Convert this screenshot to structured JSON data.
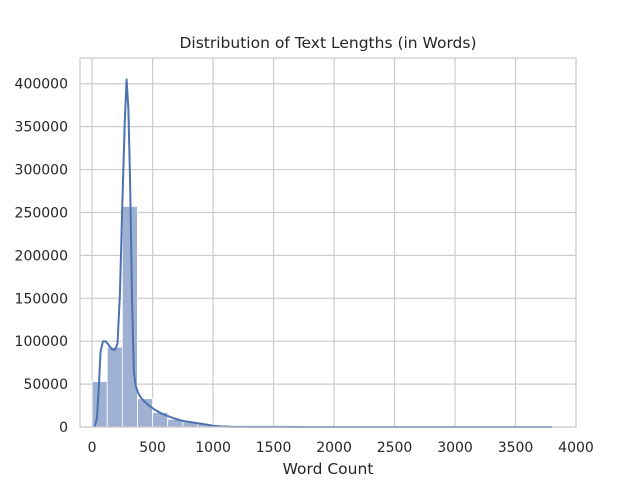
{
  "chart_data": {
    "type": "bar",
    "title": "Distribution of Text Lengths (in Words)",
    "xlabel": "Word Count",
    "ylabel": "",
    "xlim": [
      -100,
      4000
    ],
    "ylim": [
      0,
      430000
    ],
    "x_ticks": [
      0,
      500,
      1000,
      1500,
      2000,
      2500,
      3000,
      3500,
      4000
    ],
    "y_ticks": [
      0,
      50000,
      100000,
      150000,
      200000,
      250000,
      300000,
      350000,
      400000
    ],
    "grid": true,
    "bin_width": 125,
    "bins": [
      {
        "x0": 0,
        "value": 53000
      },
      {
        "x0": 125,
        "value": 93000
      },
      {
        "x0": 250,
        "value": 257000
      },
      {
        "x0": 375,
        "value": 33000
      },
      {
        "x0": 500,
        "value": 17000
      },
      {
        "x0": 625,
        "value": 9000
      },
      {
        "x0": 750,
        "value": 5500
      },
      {
        "x0": 875,
        "value": 3500
      },
      {
        "x0": 1000,
        "value": 1200
      },
      {
        "x0": 1125,
        "value": 600
      },
      {
        "x0": 1250,
        "value": 300
      },
      {
        "x0": 1375,
        "value": 150
      },
      {
        "x0": 1500,
        "value": 80
      }
    ],
    "kde": {
      "x": [
        20,
        40,
        55,
        70,
        90,
        110,
        130,
        150,
        170,
        190,
        210,
        230,
        250,
        270,
        285,
        300,
        315,
        330,
        345,
        360,
        380,
        400,
        430,
        470,
        520,
        570,
        620,
        680,
        750,
        820,
        880,
        940,
        1000,
        1060,
        1150,
        1300,
        1500,
        1800,
        2200,
        2800,
        3400,
        3800
      ],
      "y": [
        0,
        10000,
        45000,
        88000,
        100000,
        100000,
        97000,
        93000,
        90000,
        90000,
        97000,
        155000,
        260000,
        355000,
        405000,
        370000,
        280000,
        150000,
        65000,
        48000,
        40000,
        35000,
        30000,
        25000,
        20000,
        16000,
        13000,
        10000,
        7000,
        5500,
        4200,
        3000,
        1500,
        700,
        300,
        150,
        80,
        40,
        20,
        10,
        5,
        0
      ]
    },
    "colors": {
      "bar_fill": "#9fb1d3",
      "bar_stroke": "#ffffff",
      "kde_line": "#4c72b0",
      "grid": "#cccccc",
      "spine": "#cccccc"
    }
  }
}
